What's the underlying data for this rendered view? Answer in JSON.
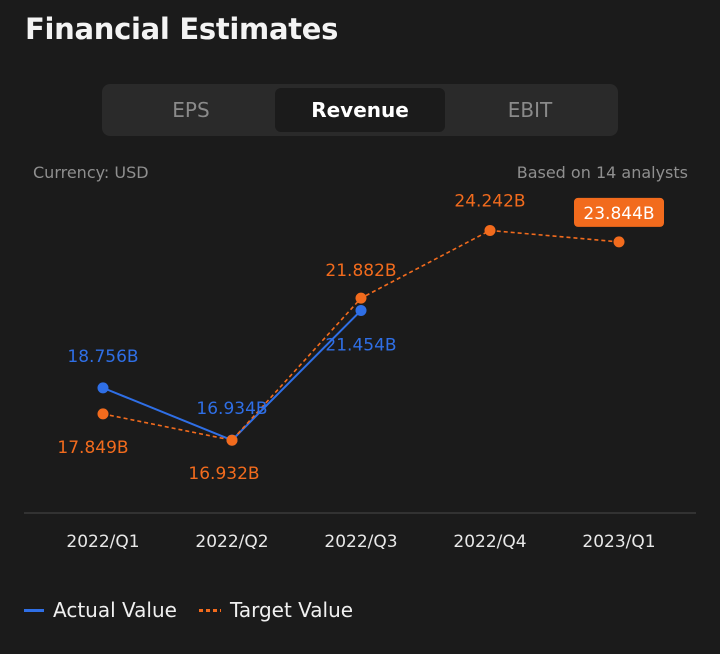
{
  "header": {
    "title": "Financial Estimates"
  },
  "tabs": [
    {
      "label": "EPS",
      "active": false
    },
    {
      "label": "Revenue",
      "active": true
    },
    {
      "label": "EBIT",
      "active": false
    }
  ],
  "meta": {
    "currency": "Currency:  USD",
    "analysts": "Based on 14 analysts"
  },
  "legend": {
    "actual": "Actual Value",
    "target": "Target Value"
  },
  "colors": {
    "actual": "#2f6fe6",
    "target": "#f26b1d",
    "background": "#1b1b1b"
  },
  "chart_data": {
    "type": "line",
    "categories": [
      "2022/Q1",
      "2022/Q2",
      "2022/Q3",
      "2022/Q4",
      "2023/Q1"
    ],
    "series": [
      {
        "name": "Actual Value",
        "values": [
          18.756,
          16.934,
          21.454,
          null,
          null
        ],
        "labels": [
          "18.756B",
          "16.934B",
          "21.454B",
          null,
          null
        ],
        "style": "solid"
      },
      {
        "name": "Target Value",
        "values": [
          17.849,
          16.932,
          21.882,
          24.242,
          23.844
        ],
        "labels": [
          "17.849B",
          "16.932B",
          "21.882B",
          "24.242B",
          "23.844B"
        ],
        "style": "dashed"
      }
    ],
    "highlighted_label": "23.844B",
    "ylim": [
      14.5,
      26
    ],
    "grid": false,
    "legend_position": "bottom-left"
  }
}
